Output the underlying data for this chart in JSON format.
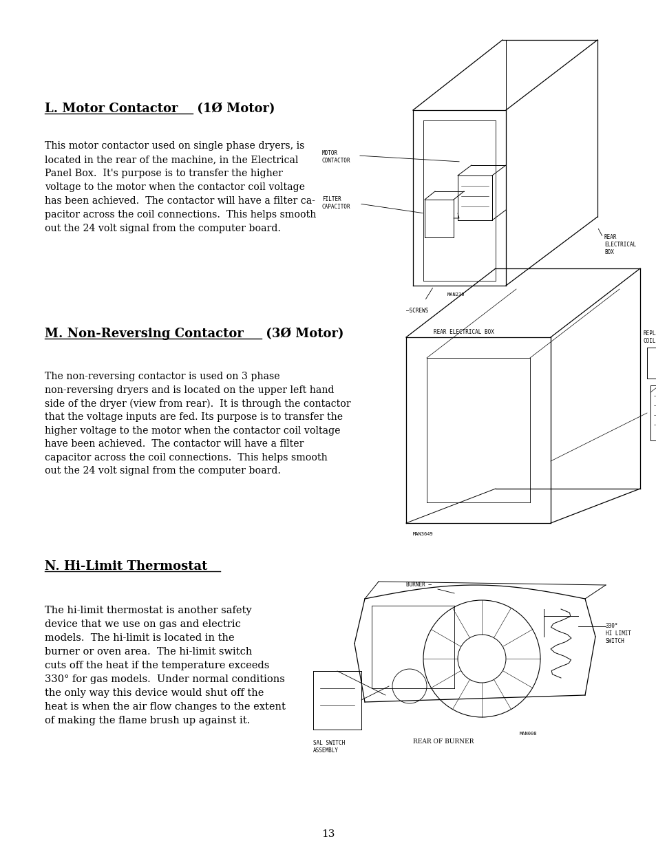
{
  "bg_color": "#ffffff",
  "page_number": "13",
  "section_L_title_underlined": "L. Motor Contactor",
  "section_L_title_rest": " (1Ø Motor)",
  "section_L_body": "This motor contactor used on single phase dryers, is\nlocated in the rear of the machine, in the Electrical\nPanel Box.  It's purpose is to transfer the higher\nvoltage to the motor when the contactor coil voltage\nhas been achieved.  The contactor will have a filter ca-\npacitor across the coil connections.  This helps smooth\nout the 24 volt signal from the computer board.",
  "section_M_title_underlined": "M. Non-Reversing Contactor",
  "section_M_title_rest": " (3Ø Motor)",
  "section_M_body": "The non-reversing contactor is used on 3 phase\nnon-reversing dryers and is located on the upper left hand\nside of the dryer (view from rear).  It is through the contactor\nthat the voltage inputs are fed. Its purpose is to transfer the\nhigher voltage to the motor when the contactor coil voltage\nhave been achieved.  The contactor will have a filter\ncapacitor across the coil connections.  This helps smooth\nout the 24 volt signal from the computer board.",
  "section_N_title_underlined": "N. Hi-Limit Thermostat",
  "section_N_body": "The hi-limit thermostat is another safety\ndevice that we use on gas and electric\nmodels.  The hi-limit is located in the\nburner or oven area.  The hi-limit switch\ncuts off the heat if the temperature exceeds\n330° for gas models.  Under normal conditions\nthe only way this device would shut off the\nheat is when the air flow changes to the extent\nof making the flame brush up against it.",
  "text_color": "#000000",
  "title_fontsize": 13,
  "body_fontsize": 10.2,
  "body_fontsize_N": 10.5
}
